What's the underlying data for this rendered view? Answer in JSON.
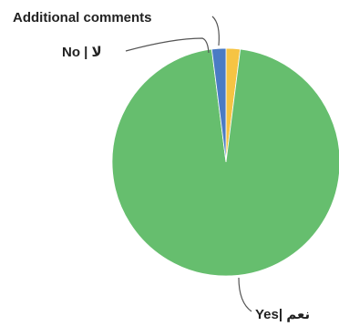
{
  "chart_data": {
    "type": "pie",
    "title": "",
    "legend": "none",
    "slices": [
      {
        "label": "Additional comments",
        "value": 2,
        "color": "#f6c443"
      },
      {
        "label": "Yes| نعم",
        "value": 96,
        "color": "#66be6e"
      },
      {
        "label": "No | لا",
        "value": 2,
        "color": "#4a7bc4"
      }
    ]
  }
}
